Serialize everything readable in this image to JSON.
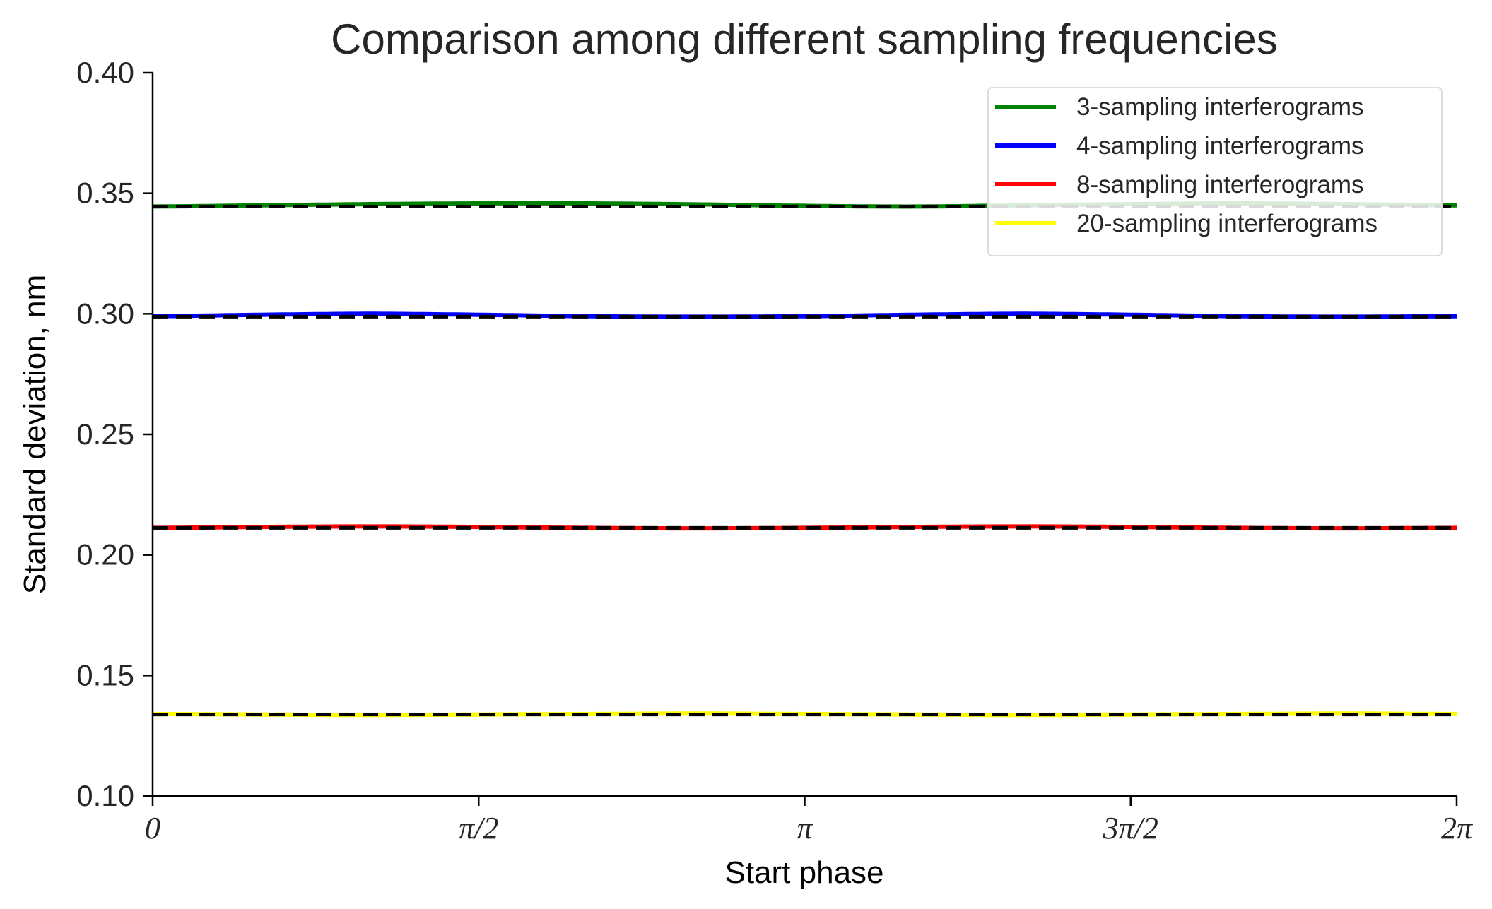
{
  "chart_data": {
    "type": "line",
    "title": "Comparison among different sampling frequencies",
    "xlabel": "Start phase",
    "ylabel": "Standard deviation, nm",
    "xlim": [
      0,
      6.283185307
    ],
    "ylim": [
      0.1,
      0.4
    ],
    "x_ticks": [
      {
        "value": 0,
        "label": "0"
      },
      {
        "value": 1.570796327,
        "label": "π/2"
      },
      {
        "value": 3.141592654,
        "label": "π"
      },
      {
        "value": 4.71238898,
        "label": "3π/2"
      },
      {
        "value": 6.283185307,
        "label": "2π"
      }
    ],
    "y_ticks": [
      {
        "value": 0.1,
        "label": "0.10"
      },
      {
        "value": 0.15,
        "label": "0.15"
      },
      {
        "value": 0.2,
        "label": "0.20"
      },
      {
        "value": 0.25,
        "label": "0.25"
      },
      {
        "value": 0.3,
        "label": "0.30"
      },
      {
        "value": 0.35,
        "label": "0.35"
      },
      {
        "value": 0.4,
        "label": "0.40"
      }
    ],
    "grid": false,
    "legend_position": "top-right",
    "series": [
      {
        "name": "3-sampling interferograms",
        "color": "#008000",
        "x": [
          0,
          0.5236,
          1.0472,
          1.5708,
          2.0944,
          2.618,
          3.1416,
          3.6652,
          4.1888,
          4.7124,
          5.236,
          5.7596,
          6.2832
        ],
        "values": [
          0.3445,
          0.345,
          0.3455,
          0.3458,
          0.3458,
          0.3454,
          0.3448,
          0.3445,
          0.345,
          0.3455,
          0.3458,
          0.3455,
          0.345
        ],
        "reference": 0.3445
      },
      {
        "name": "4-sampling interferograms",
        "color": "#0000ff",
        "x": [
          0,
          0.5236,
          1.0472,
          1.5708,
          2.0944,
          2.618,
          3.1416,
          3.6652,
          4.1888,
          4.7124,
          5.236,
          5.7596,
          6.2832
        ],
        "values": [
          0.299,
          0.2996,
          0.3,
          0.2996,
          0.299,
          0.2988,
          0.299,
          0.2996,
          0.3,
          0.2996,
          0.299,
          0.2988,
          0.299
        ],
        "reference": 0.2988
      },
      {
        "name": "8-sampling interferograms",
        "color": "#ff0000",
        "x": [
          0,
          0.5236,
          1.0472,
          1.5708,
          2.0944,
          2.618,
          3.1416,
          3.6652,
          4.1888,
          4.7124,
          5.236,
          5.7596,
          6.2832
        ],
        "values": [
          0.2112,
          0.2116,
          0.2118,
          0.2116,
          0.2112,
          0.211,
          0.2112,
          0.2116,
          0.2118,
          0.2116,
          0.2112,
          0.211,
          0.2112
        ],
        "reference": 0.2112
      },
      {
        "name": "20-sampling interferograms",
        "color": "#ffff00",
        "x": [
          0,
          0.5236,
          1.0472,
          1.5708,
          2.0944,
          2.618,
          3.1416,
          3.6652,
          4.1888,
          4.7124,
          5.236,
          5.7596,
          6.2832
        ],
        "values": [
          0.134,
          0.1338,
          0.1336,
          0.1338,
          0.134,
          0.1342,
          0.134,
          0.1338,
          0.1336,
          0.1338,
          0.134,
          0.1342,
          0.134
        ],
        "reference": 0.1338
      }
    ],
    "reference_line_color": "#000000"
  }
}
